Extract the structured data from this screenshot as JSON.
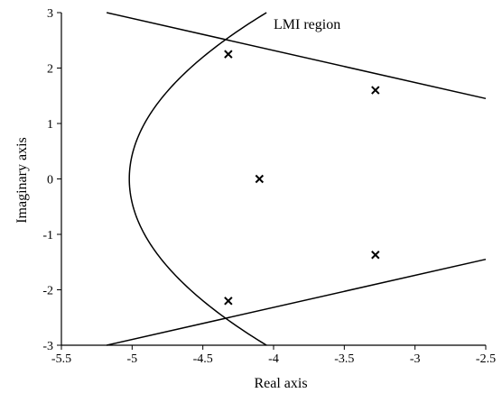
{
  "chart_data": {
    "type": "scatter",
    "xlabel": "Real axis",
    "ylabel": "Imaginary axis",
    "xlim": [
      -5.5,
      -2.5
    ],
    "ylim": [
      -3,
      3
    ],
    "xticks": [
      "-5.5",
      "-5",
      "-4.5",
      "-4",
      "-3.5",
      "-3",
      "-2.5"
    ],
    "yticks": [
      "3",
      "2",
      "1",
      "0",
      "-1",
      "-2",
      "-3"
    ],
    "grid": false,
    "annotation": "LMI region",
    "points": [
      {
        "x": -4.32,
        "y": 2.25
      },
      {
        "x": -3.28,
        "y": 1.6
      },
      {
        "x": -4.1,
        "y": 0.0
      },
      {
        "x": -3.28,
        "y": -1.37
      },
      {
        "x": -4.32,
        "y": -2.2
      }
    ],
    "boundary_lines": [
      {
        "x": [
          -5.18,
          -2.5
        ],
        "y": [
          3.0,
          1.45
        ]
      },
      {
        "x": [
          -5.18,
          -2.5
        ],
        "y": [
          -3.0,
          -1.45
        ]
      }
    ],
    "boundary_curve": {
      "type": "parabola",
      "vertex": [
        -5.02,
        0.0
      ],
      "endpoints": [
        [
          -4.05,
          3.0
        ],
        [
          -4.05,
          -3.0
        ]
      ]
    },
    "colors": {
      "stroke": "#000000",
      "background": "#ffffff"
    }
  }
}
